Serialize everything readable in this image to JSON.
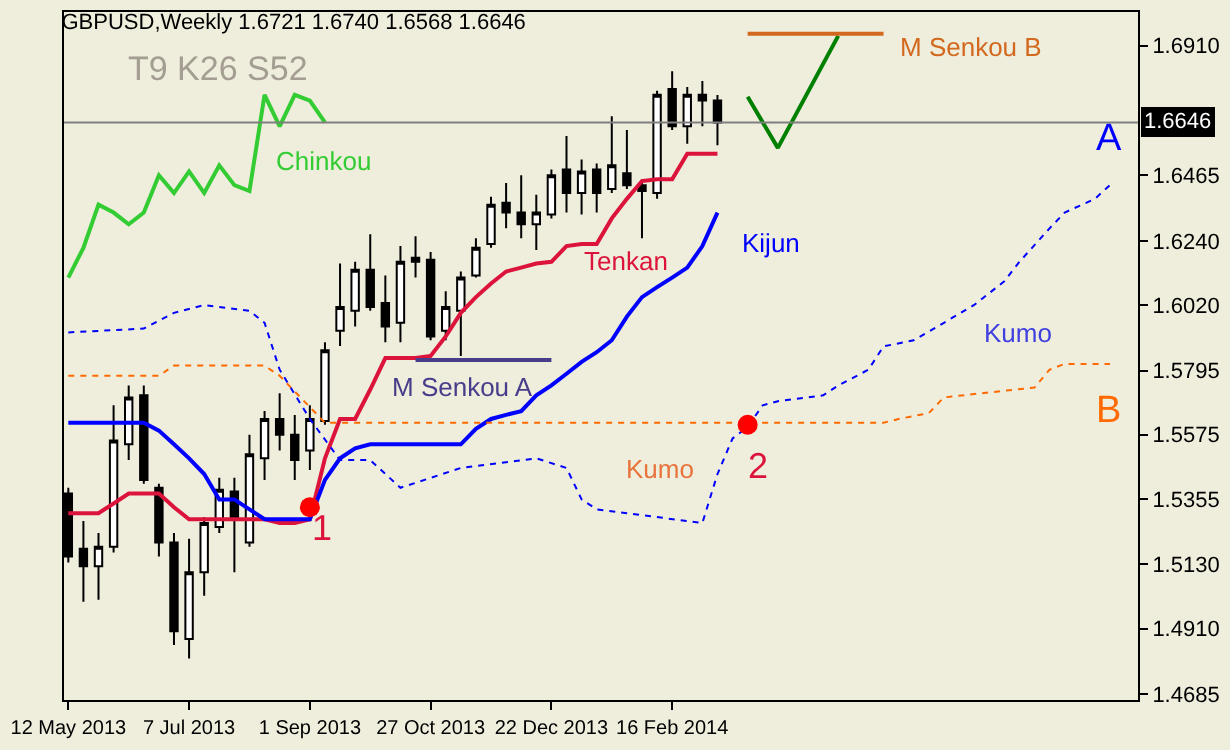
{
  "chart_data": {
    "type": "candlestick",
    "title": "GBPUSD,Weekly 1.6721 1.6740 1.6568 1.6646",
    "x": [
      "2013-05-12",
      "2013-05-19",
      "2013-05-26",
      "2013-06-02",
      "2013-06-09",
      "2013-06-16",
      "2013-06-23",
      "2013-06-30",
      "2013-07-07",
      "2013-07-14",
      "2013-07-21",
      "2013-07-28",
      "2013-08-04",
      "2013-08-11",
      "2013-08-18",
      "2013-08-25",
      "2013-09-01",
      "2013-09-08",
      "2013-09-15",
      "2013-09-22",
      "2013-09-29",
      "2013-10-06",
      "2013-10-13",
      "2013-10-20",
      "2013-10-27",
      "2013-11-03",
      "2013-11-10",
      "2013-11-17",
      "2013-11-24",
      "2013-12-01",
      "2013-12-08",
      "2013-12-15",
      "2013-12-22",
      "2013-12-29",
      "2014-01-05",
      "2014-01-12",
      "2014-01-19",
      "2014-01-26",
      "2014-02-02",
      "2014-02-09",
      "2014-02-16",
      "2014-02-23",
      "2014-03-02",
      "2014-03-09"
    ],
    "ohlc": [
      [
        1.5373,
        1.5393,
        1.5137,
        1.5157
      ],
      [
        1.5184,
        1.5279,
        1.5002,
        1.5124
      ],
      [
        1.5124,
        1.5238,
        1.5009,
        1.5191
      ],
      [
        1.5191,
        1.5676,
        1.5171,
        1.5555
      ],
      [
        1.5542,
        1.5744,
        1.5488,
        1.5703
      ],
      [
        1.571,
        1.5744,
        1.5407,
        1.542
      ],
      [
        1.5393,
        1.5407,
        1.5157,
        1.5205
      ],
      [
        1.5205,
        1.5238,
        1.4854,
        1.4901
      ],
      [
        1.4874,
        1.5218,
        1.4807,
        1.5103
      ],
      [
        1.5103,
        1.5292,
        1.5023,
        1.5272
      ],
      [
        1.5258,
        1.5427,
        1.5238,
        1.5386
      ],
      [
        1.538,
        1.5427,
        1.5103,
        1.5285
      ],
      [
        1.5205,
        1.5575,
        1.5191,
        1.5508
      ],
      [
        1.5494,
        1.5656,
        1.542,
        1.5629
      ],
      [
        1.5629,
        1.5717,
        1.5521,
        1.5575
      ],
      [
        1.5575,
        1.5643,
        1.542,
        1.5488
      ],
      [
        1.5521,
        1.5676,
        1.5454,
        1.5629
      ],
      [
        1.5622,
        1.5892,
        1.5609,
        1.5865
      ],
      [
        1.5932,
        1.6162,
        1.5879,
        1.6013
      ],
      [
        1.6,
        1.6168,
        1.5946,
        1.6141
      ],
      [
        1.6141,
        1.6263,
        1.6,
        1.6013
      ],
      [
        1.6027,
        1.6121,
        1.5892,
        1.5946
      ],
      [
        1.5959,
        1.6222,
        1.5892,
        1.6168
      ],
      [
        1.6182,
        1.6256,
        1.6114,
        1.6168
      ],
      [
        1.6175,
        1.6202,
        1.5899,
        1.5912
      ],
      [
        1.5932,
        1.6067,
        1.5899,
        1.6013
      ],
      [
        1.6,
        1.6135,
        1.5845,
        1.6114
      ],
      [
        1.6121,
        1.6249,
        1.6114,
        1.6216
      ],
      [
        1.6229,
        1.6391,
        1.6216,
        1.6364
      ],
      [
        1.6371,
        1.6438,
        1.6283,
        1.6337
      ],
      [
        1.6337,
        1.6465,
        1.6249,
        1.6297
      ],
      [
        1.6297,
        1.6398,
        1.6209,
        1.6337
      ],
      [
        1.633,
        1.6485,
        1.6317,
        1.6465
      ],
      [
        1.6485,
        1.66,
        1.6337,
        1.6404
      ],
      [
        1.6404,
        1.6519,
        1.633,
        1.6478
      ],
      [
        1.6485,
        1.6505,
        1.6337,
        1.6404
      ],
      [
        1.6418,
        1.6667,
        1.6404,
        1.6499
      ],
      [
        1.6472,
        1.662,
        1.6418,
        1.6431
      ],
      [
        1.6431,
        1.6451,
        1.6249,
        1.6411
      ],
      [
        1.6404,
        1.6755,
        1.6384,
        1.6741
      ],
      [
        1.6761,
        1.6822,
        1.662,
        1.6633
      ],
      [
        1.6633,
        1.6768,
        1.6573,
        1.6741
      ],
      [
        1.6741,
        1.6788,
        1.6633,
        1.6721
      ],
      [
        1.6721,
        1.674,
        1.6568,
        1.6646
      ]
    ],
    "series": [
      {
        "name": "Chinkou",
        "type": "line",
        "color": "#33cc33",
        "x": [
          "2013-05-12",
          "2013-05-19",
          "2013-05-26",
          "2013-06-02",
          "2013-06-09",
          "2013-06-16",
          "2013-06-23",
          "2013-06-30",
          "2013-07-07",
          "2013-07-14",
          "2013-07-21",
          "2013-07-28",
          "2013-08-04",
          "2013-08-11",
          "2013-08-18",
          "2013-08-25",
          "2013-09-01",
          "2013-09-08"
        ],
        "values": [
          1.6114,
          1.6216,
          1.6364,
          1.6337,
          1.6297,
          1.6337,
          1.6465,
          1.6404,
          1.6478,
          1.6404,
          1.6499,
          1.6431,
          1.6411,
          1.6741,
          1.6633,
          1.6741,
          1.6721,
          1.6646
        ]
      },
      {
        "name": "Tenkan",
        "type": "line",
        "color": "#dc143c",
        "values": [
          1.5306,
          1.5306,
          1.5306,
          1.5339,
          1.5373,
          1.5373,
          1.5373,
          1.5326,
          1.5285,
          1.5285,
          1.5285,
          1.5285,
          1.5285,
          1.5285,
          1.5272,
          1.5272,
          1.5285,
          1.5494,
          1.5629,
          1.5629,
          1.573,
          1.5838,
          1.5838,
          1.5838,
          1.5845,
          1.5912,
          1.5993,
          1.6047,
          1.6094,
          1.6135,
          1.6148,
          1.6162,
          1.6168,
          1.6222,
          1.6229,
          1.6229,
          1.6317,
          1.6384,
          1.6445,
          1.6451,
          1.6451,
          1.6539,
          1.6539,
          1.6539
        ]
      },
      {
        "name": "Kijun",
        "type": "line",
        "color": "#0000ff",
        "values": [
          1.5616,
          1.5616,
          1.5616,
          1.5616,
          1.5616,
          1.5616,
          1.5589,
          1.5542,
          1.5494,
          1.544,
          1.5353,
          1.5353,
          1.5319,
          1.5285,
          1.5285,
          1.5285,
          1.5285,
          1.542,
          1.5494,
          1.5528,
          1.5542,
          1.5542,
          1.5542,
          1.5542,
          1.5542,
          1.5542,
          1.5542,
          1.5595,
          1.5629,
          1.5643,
          1.5656,
          1.571,
          1.5744,
          1.5784,
          1.5825,
          1.5858,
          1.5899,
          1.598,
          1.6047,
          1.6081,
          1.6114,
          1.6148,
          1.6222,
          1.6337
        ]
      },
      {
        "name": "A",
        "type": "line",
        "line_style": "dotted",
        "color": "#0000ff",
        "x": [
          "2013-05-12",
          "2013-06-16",
          "2013-06-30",
          "2013-07-14",
          "2013-08-04",
          "2013-08-11",
          "2013-08-18",
          "2013-09-01",
          "2013-09-15",
          "2013-09-29",
          "2013-10-13",
          "2013-10-27",
          "2013-11-10",
          "2013-12-15",
          "2013-12-29",
          "2014-01-05",
          "2014-01-12",
          "2014-01-26",
          "2014-03-02",
          "2014-03-09",
          "2014-03-16",
          "2014-03-23",
          "2014-03-30",
          "2014-04-06",
          "2014-04-27",
          "2014-05-04",
          "2014-05-18",
          "2014-05-25",
          "2014-06-08",
          "2014-06-22",
          "2014-07-06",
          "2014-07-20",
          "2014-07-27",
          "2014-08-10",
          "2014-08-17",
          "2014-08-31",
          "2014-09-07"
        ],
        "values": [
          1.5926,
          1.5939,
          1.5993,
          1.602,
          1.6,
          1.5959,
          1.5798,
          1.5629,
          1.5488,
          1.5488,
          1.5393,
          1.5427,
          1.5461,
          1.5494,
          1.5461,
          1.5353,
          1.5319,
          1.5306,
          1.5272,
          1.544,
          1.5562,
          1.5602,
          1.5676,
          1.569,
          1.571,
          1.5744,
          1.5798,
          1.5878,
          1.5899,
          1.5959,
          1.602,
          1.6101,
          1.6168,
          1.6283,
          1.6337,
          1.6384,
          1.6431
        ]
      },
      {
        "name": "B",
        "type": "line",
        "line_style": "dotted",
        "color": "#ff6a00",
        "x": [
          "2013-05-12",
          "2013-06-23",
          "2013-06-30",
          "2013-08-11",
          "2013-08-18",
          "2013-09-08",
          "2014-05-25",
          "2014-06-01",
          "2014-06-15",
          "2014-06-22",
          "2014-08-03",
          "2014-08-10",
          "2014-08-17",
          "2014-09-07"
        ],
        "values": [
          1.5777,
          1.5777,
          1.5812,
          1.5812,
          1.5777,
          1.5616,
          1.5616,
          1.5629,
          1.5649,
          1.5703,
          1.5737,
          1.5798,
          1.5818,
          1.5818
        ]
      },
      {
        "type": "line",
        "color": "#008000",
        "x": [
          "2014-03-23",
          "2014-04-06",
          "2014-05-04"
        ],
        "values": [
          1.6734,
          1.6559,
          1.6943
        ]
      },
      {
        "name": "M Senkou B",
        "type": "line",
        "color": "#d2691e",
        "x": [
          "2014-03-23",
          "2014-05-25"
        ],
        "values": [
          1.695,
          1.695
        ]
      },
      {
        "name": "M Senkou A",
        "type": "line",
        "color": "#483d8b",
        "x": [
          "2013-10-20",
          "2013-12-22"
        ],
        "values": [
          1.5831,
          1.5831
        ]
      },
      {
        "type": "scatter",
        "marker": "circle",
        "color": "#ff0000",
        "x": [
          "2013-09-01",
          "2014-03-23"
        ],
        "values": [
          1.5326,
          1.5609
        ]
      }
    ],
    "annotations": [
      "T9 K26 S52",
      "Kumo",
      "Kumo",
      "1",
      "2"
    ],
    "ref_lines": [
      {
        "axis": "y",
        "value": 1.6646,
        "label": "1.6646",
        "color": "#808080"
      }
    ],
    "xlim": [
      "2013-05-10",
      "2014-09-20"
    ],
    "xticks": [
      {
        "value": "2013-05-12",
        "label": "12 May 2013"
      },
      {
        "value": "2013-07-07",
        "label": "7 Jul 2013"
      },
      {
        "value": "2013-09-01",
        "label": "1 Sep 2013"
      },
      {
        "value": "2013-10-27",
        "label": "27 Oct 2013"
      },
      {
        "value": "2013-12-22",
        "label": "22 Dec 2013"
      },
      {
        "value": "2014-02-16",
        "label": "16 Feb 2014"
      }
    ],
    "ylim": [
      1.4665,
      1.7025
    ],
    "yticks": [
      1.4685,
      {
        "value": 1.491,
        "label": "1.4910"
      },
      {
        "value": 1.513,
        "label": "1.5130"
      },
      1.5355,
      1.5575,
      1.5795,
      {
        "value": 1.602,
        "label": "1.6020"
      },
      {
        "value": 1.624,
        "label": "1.6240"
      },
      1.6465,
      {
        "value": 1.691,
        "label": "1.6910"
      }
    ],
    "grid": false,
    "legend": false
  }
}
